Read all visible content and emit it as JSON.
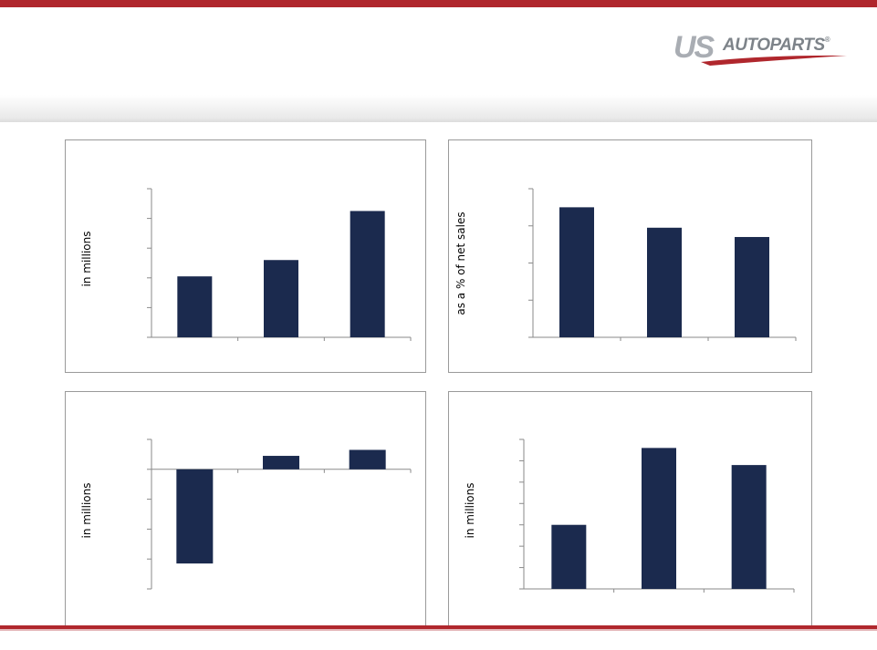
{
  "logo": {
    "text_us": "US",
    "text_autoparts": "AUTOPARTS",
    "registered": "®"
  },
  "colors": {
    "accent": "#b0272d",
    "bar": "#1b2a4e",
    "panel_border": "#9a9a9a"
  },
  "chart_data": [
    {
      "type": "bar",
      "ylabel": "in millions",
      "categories": [
        "",
        "",
        ""
      ],
      "values": [
        2.05,
        2.6,
        4.25
      ],
      "ylim": [
        0,
        5
      ],
      "yticks": [
        0,
        1,
        2,
        3,
        4,
        5
      ]
    },
    {
      "type": "bar",
      "ylabel": "as a % of net sales",
      "categories": [
        "",
        "",
        ""
      ],
      "values": [
        3.5,
        2.95,
        2.7
      ],
      "ylim": [
        0,
        4
      ],
      "yticks": [
        0,
        1,
        2,
        3,
        4
      ]
    },
    {
      "type": "bar",
      "ylabel": "in millions",
      "categories": [
        "",
        "",
        ""
      ],
      "values": [
        -3.15,
        0.45,
        0.65
      ],
      "ylim": [
        -4,
        1
      ],
      "yticks": [
        -4,
        -3,
        -2,
        -1,
        0,
        1
      ]
    },
    {
      "type": "bar",
      "ylabel": "in millions",
      "categories": [
        "",
        "",
        ""
      ],
      "values": [
        3.0,
        6.6,
        5.8
      ],
      "ylim": [
        0,
        7
      ],
      "yticks": [
        0,
        1,
        2,
        3,
        4,
        5,
        6,
        7
      ]
    }
  ]
}
